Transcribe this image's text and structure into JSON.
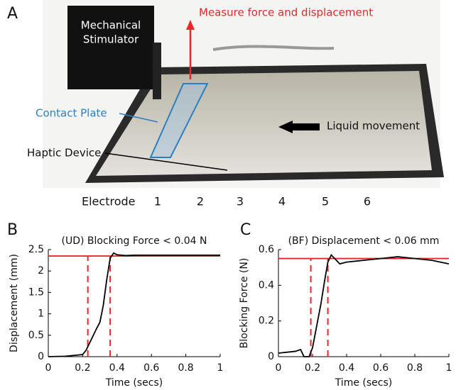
{
  "panel_a": {
    "label": "A",
    "stimulator_label": [
      "Mechanical",
      "Stimulator"
    ],
    "measure_label": "Measure force and displacement",
    "contact_label": "Contact Plate",
    "liquid_label": "Liquid movement",
    "haptic_label": "Haptic Device",
    "electrode_label": "Electrode",
    "electrodes": [
      "1",
      "2",
      "3",
      "4",
      "5",
      "6"
    ]
  },
  "chart_data": [
    {
      "type": "line",
      "panel_label": "B",
      "title": "(UD) Blocking Force < 0.04 N",
      "xlabel": "Time (secs)",
      "ylabel": "Displacement (mm)",
      "x": [
        0,
        0.1,
        0.2,
        0.22,
        0.25,
        0.28,
        0.3,
        0.32,
        0.34,
        0.36,
        0.38,
        0.4,
        0.45,
        0.5,
        0.6,
        0.8,
        1
      ],
      "values": [
        0,
        0.01,
        0.05,
        0.15,
        0.4,
        0.65,
        0.8,
        1.2,
        1.8,
        2.3,
        2.42,
        2.38,
        2.36,
        2.37,
        2.37,
        2.37,
        2.37
      ],
      "color": "#000000",
      "ref_color": "#e8262b",
      "ref_y": 2.35,
      "ref_x": [
        0.23,
        0.36
      ],
      "xlim": [
        0,
        1
      ],
      "xticks": [
        0,
        0.2,
        0.4,
        0.6,
        0.8,
        1
      ],
      "ylim": [
        0,
        2.5
      ],
      "yticks": [
        0,
        0.5,
        1,
        1.5,
        2,
        2.5
      ]
    },
    {
      "type": "line",
      "panel_label": "C",
      "title": "(BF) Displacement < 0.06 mm",
      "xlabel": "Time (secs)",
      "ylabel": "Blocking Force (N)",
      "x": [
        0,
        0.1,
        0.13,
        0.15,
        0.18,
        0.2,
        0.22,
        0.25,
        0.27,
        0.29,
        0.31,
        0.33,
        0.36,
        0.4,
        0.5,
        0.6,
        0.7,
        0.8,
        0.9,
        1
      ],
      "values": [
        0.02,
        0.03,
        0.04,
        0,
        0,
        0.05,
        0.15,
        0.3,
        0.42,
        0.53,
        0.57,
        0.55,
        0.52,
        0.53,
        0.54,
        0.55,
        0.56,
        0.55,
        0.54,
        0.52
      ],
      "color": "#000000",
      "ref_color": "#e8262b",
      "ref_y": 0.55,
      "ref_x": [
        0.19,
        0.29
      ],
      "xlim": [
        0,
        1
      ],
      "xticks": [
        0,
        0.2,
        0.4,
        0.6,
        0.8,
        1
      ],
      "ylim": [
        0,
        0.6
      ],
      "yticks": [
        0,
        0.2,
        0.4,
        0.6
      ]
    }
  ]
}
